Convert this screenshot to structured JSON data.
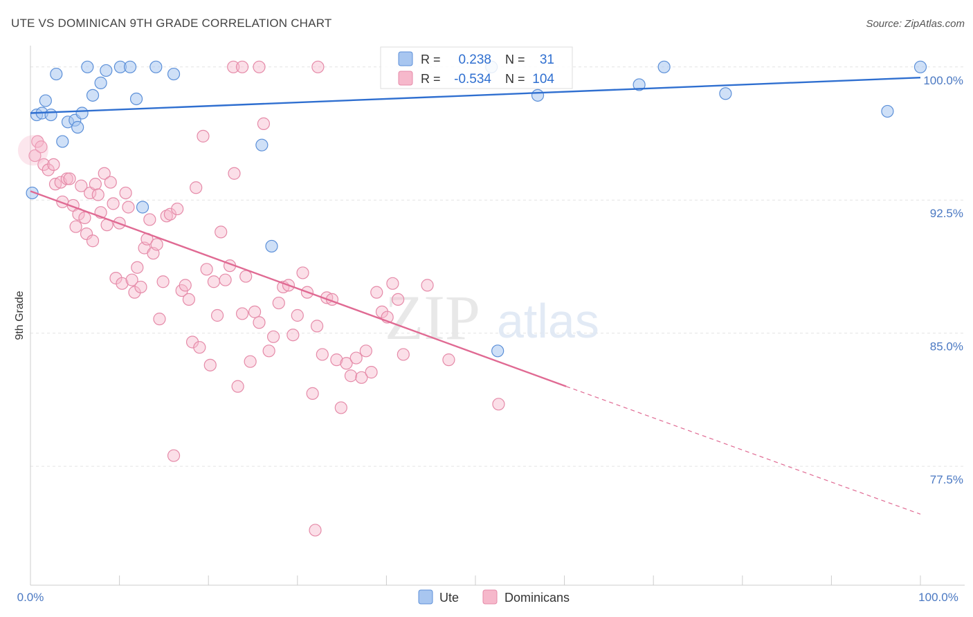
{
  "title": "UTE VS DOMINICAN 9TH GRADE CORRELATION CHART",
  "source": "Source: ZipAtlas.com",
  "watermark": {
    "zip": "ZIP",
    "atlas": "atlas"
  },
  "legend": {
    "r_label": "R =",
    "n_label": "N =",
    "ute": {
      "r": "0.238",
      "n": "31"
    },
    "dominicans": {
      "r": "-0.534",
      "n": "104"
    }
  },
  "bottom_legend": {
    "ute": "Ute",
    "dominicans": "Dominicans"
  },
  "colors": {
    "ute_fill": "#a8c6f0",
    "ute_stroke": "#5b8fd8",
    "ute_line": "#2f6fd0",
    "dom_fill": "#f6b8cb",
    "dom_stroke": "#e58aa8",
    "dom_line": "#e06a93",
    "grid": "#e3e3e3",
    "tick_label": "#4a78c2"
  },
  "chart_data": {
    "type": "scatter",
    "title": "UTE VS DOMINICAN 9TH GRADE CORRELATION CHART",
    "xlabel": "",
    "ylabel": "9th Grade",
    "xlim": [
      0,
      100
    ],
    "ylim": [
      70.8,
      101.2
    ],
    "x_tick_labels": [
      "0.0%",
      "100.0%"
    ],
    "y_ticks": [
      {
        "value": 100.0,
        "label": "100.0%"
      },
      {
        "value": 92.5,
        "label": "92.5%"
      },
      {
        "value": 85.0,
        "label": "85.0%"
      },
      {
        "value": 77.5,
        "label": "77.5%"
      }
    ],
    "series": [
      {
        "name": "Ute",
        "r": 0.238,
        "n": 31,
        "trend": {
          "x": [
            0,
            100
          ],
          "y": [
            97.4,
            99.4
          ]
        },
        "points": [
          [
            0.2,
            92.9
          ],
          [
            0.7,
            97.3
          ],
          [
            1.3,
            97.4
          ],
          [
            1.7,
            98.1
          ],
          [
            2.3,
            97.3
          ],
          [
            2.9,
            99.6
          ],
          [
            3.6,
            95.8
          ],
          [
            4.2,
            96.9
          ],
          [
            5.0,
            97.0
          ],
          [
            5.3,
            96.6
          ],
          [
            5.8,
            97.4
          ],
          [
            6.4,
            100.0
          ],
          [
            7.0,
            98.4
          ],
          [
            7.9,
            99.1
          ],
          [
            8.5,
            99.8
          ],
          [
            10.1,
            100.0
          ],
          [
            11.2,
            100.0
          ],
          [
            11.9,
            98.2
          ],
          [
            12.6,
            92.1
          ],
          [
            14.1,
            100.0
          ],
          [
            16.1,
            99.6
          ],
          [
            26.0,
            95.6
          ],
          [
            27.1,
            89.9
          ],
          [
            51.8,
            100.0
          ],
          [
            52.5,
            84.0
          ],
          [
            57.0,
            98.4
          ],
          [
            68.4,
            99.0
          ],
          [
            71.2,
            100.0
          ],
          [
            78.1,
            98.5
          ],
          [
            96.3,
            97.5
          ],
          [
            100.0,
            100.0
          ]
        ]
      },
      {
        "name": "Dominicans",
        "r": -0.534,
        "n": 104,
        "trend": {
          "x": [
            0,
            60.2
          ],
          "y": [
            93.0,
            82.0
          ]
        },
        "trend_extension": {
          "x": [
            60.2,
            100
          ],
          "y": [
            82.0,
            74.8
          ]
        },
        "points": [
          [
            0.5,
            95.0
          ],
          [
            0.8,
            95.8
          ],
          [
            1.2,
            95.5
          ],
          [
            1.5,
            94.5
          ],
          [
            2.0,
            94.2
          ],
          [
            2.6,
            94.5
          ],
          [
            2.8,
            93.4
          ],
          [
            3.4,
            93.5
          ],
          [
            3.6,
            92.4
          ],
          [
            4.1,
            93.7
          ],
          [
            4.4,
            93.7
          ],
          [
            4.8,
            92.2
          ],
          [
            5.1,
            91.0
          ],
          [
            5.4,
            91.7
          ],
          [
            5.7,
            93.3
          ],
          [
            6.1,
            91.5
          ],
          [
            6.3,
            90.6
          ],
          [
            6.7,
            92.9
          ],
          [
            7.0,
            90.2
          ],
          [
            7.3,
            93.4
          ],
          [
            7.6,
            92.8
          ],
          [
            7.9,
            91.8
          ],
          [
            8.3,
            94.0
          ],
          [
            8.6,
            91.1
          ],
          [
            9.0,
            93.5
          ],
          [
            9.3,
            92.3
          ],
          [
            9.6,
            88.1
          ],
          [
            10.0,
            91.2
          ],
          [
            10.3,
            87.8
          ],
          [
            10.7,
            92.9
          ],
          [
            11.0,
            92.1
          ],
          [
            11.4,
            88.0
          ],
          [
            11.7,
            87.3
          ],
          [
            12.0,
            88.7
          ],
          [
            12.4,
            87.6
          ],
          [
            12.8,
            89.8
          ],
          [
            13.1,
            90.3
          ],
          [
            13.4,
            91.4
          ],
          [
            13.8,
            89.5
          ],
          [
            14.2,
            90.0
          ],
          [
            14.5,
            85.8
          ],
          [
            14.9,
            87.9
          ],
          [
            15.3,
            91.6
          ],
          [
            15.7,
            91.7
          ],
          [
            16.1,
            78.1
          ],
          [
            16.5,
            92.0
          ],
          [
            17.0,
            87.4
          ],
          [
            17.4,
            87.7
          ],
          [
            17.8,
            86.9
          ],
          [
            18.2,
            84.5
          ],
          [
            18.6,
            93.2
          ],
          [
            19.0,
            84.2
          ],
          [
            19.4,
            96.1
          ],
          [
            19.8,
            88.6
          ],
          [
            20.2,
            83.2
          ],
          [
            20.6,
            87.9
          ],
          [
            21.0,
            86.0
          ],
          [
            21.4,
            90.7
          ],
          [
            21.9,
            88.0
          ],
          [
            22.4,
            88.8
          ],
          [
            22.9,
            94.0
          ],
          [
            23.3,
            82.0
          ],
          [
            23.8,
            86.1
          ],
          [
            24.2,
            88.2
          ],
          [
            24.7,
            83.4
          ],
          [
            25.2,
            86.2
          ],
          [
            25.7,
            85.6
          ],
          [
            26.2,
            96.8
          ],
          [
            26.8,
            84.0
          ],
          [
            27.3,
            84.8
          ],
          [
            27.9,
            86.7
          ],
          [
            28.4,
            87.6
          ],
          [
            29.0,
            87.7
          ],
          [
            29.5,
            84.9
          ],
          [
            30.0,
            86.0
          ],
          [
            30.6,
            88.4
          ],
          [
            31.1,
            87.3
          ],
          [
            31.7,
            81.6
          ],
          [
            32.2,
            85.4
          ],
          [
            32.8,
            83.8
          ],
          [
            33.3,
            87.0
          ],
          [
            33.9,
            86.9
          ],
          [
            34.4,
            83.5
          ],
          [
            34.9,
            80.8
          ],
          [
            35.5,
            83.3
          ],
          [
            36.0,
            82.6
          ],
          [
            36.6,
            83.6
          ],
          [
            37.2,
            82.5
          ],
          [
            37.7,
            84.0
          ],
          [
            38.3,
            82.8
          ],
          [
            38.9,
            87.3
          ],
          [
            39.5,
            86.2
          ],
          [
            40.1,
            85.9
          ],
          [
            40.7,
            87.8
          ],
          [
            41.3,
            86.9
          ],
          [
            41.9,
            83.8
          ],
          [
            52.6,
            81.0
          ],
          [
            32.0,
            73.9
          ],
          [
            22.8,
            100.0
          ],
          [
            23.8,
            100.0
          ],
          [
            25.7,
            100.0
          ],
          [
            32.3,
            100.0
          ],
          [
            44.6,
            87.7
          ],
          [
            47.0,
            83.5
          ]
        ]
      }
    ]
  }
}
